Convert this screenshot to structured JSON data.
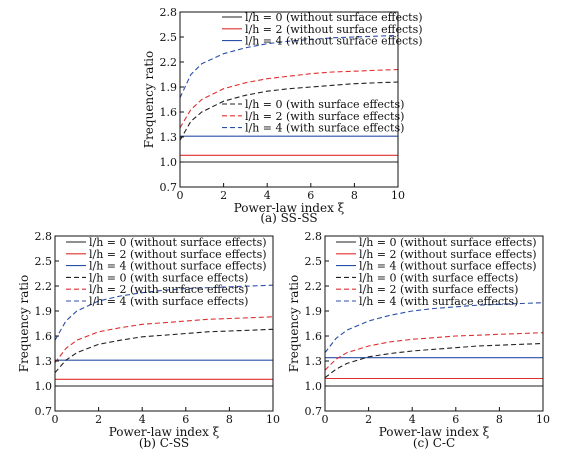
{
  "chart_data": [
    {
      "type": "line",
      "caption": "(a) SS-SS",
      "xlabel": "Power-law index ξ",
      "ylabel": "Frequency ratio",
      "xlim": [
        0,
        10
      ],
      "ylim": [
        0.7,
        2.8
      ],
      "xticks": [
        "0",
        "2",
        "4",
        "6",
        "8",
        "10"
      ],
      "yticks": [
        "0.7",
        "1.0",
        "1.3",
        "1.6",
        "1.9",
        "2.2",
        "2.5",
        "2.8"
      ],
      "legend_groups": [
        {
          "placement": "top",
          "entries": [
            0,
            1,
            2
          ]
        },
        {
          "placement": "middle-right",
          "entries": [
            3,
            4,
            5
          ]
        }
      ],
      "series": [
        {
          "name": "l/h = 0 (without surface effects)",
          "color": "#222222",
          "style": "solid",
          "x": [
            0,
            10
          ],
          "y": [
            1.0,
            1.0
          ]
        },
        {
          "name": "l/h = 2 (without surface effects)",
          "color": "#e03030",
          "style": "solid",
          "x": [
            0,
            10
          ],
          "y": [
            1.08,
            1.08
          ]
        },
        {
          "name": "l/h = 4 (without surface effects)",
          "color": "#2b4fa8",
          "style": "solid",
          "x": [
            0,
            10
          ],
          "y": [
            1.31,
            1.31
          ]
        },
        {
          "name": "l/h = 0 (with surface effects)",
          "color": "#222222",
          "style": "dashed",
          "x": [
            0,
            0.5,
            1,
            2,
            3,
            4,
            5,
            6,
            7,
            8,
            9,
            10
          ],
          "y": [
            1.26,
            1.49,
            1.6,
            1.73,
            1.8,
            1.85,
            1.88,
            1.9,
            1.92,
            1.94,
            1.95,
            1.96
          ]
        },
        {
          "name": "l/h = 2 (with surface effects)",
          "color": "#e03030",
          "style": "dashed",
          "x": [
            0,
            0.5,
            1,
            2,
            3,
            4,
            5,
            6,
            7,
            8,
            9,
            10
          ],
          "y": [
            1.41,
            1.63,
            1.75,
            1.88,
            1.95,
            2.0,
            2.03,
            2.06,
            2.08,
            2.09,
            2.1,
            2.11
          ]
        },
        {
          "name": "l/h = 4 (with surface effects)",
          "color": "#2b4fa8",
          "style": "dashed",
          "x": [
            0,
            0.5,
            1,
            2,
            3,
            4,
            5,
            6,
            7,
            8,
            9,
            10
          ],
          "y": [
            1.77,
            2.05,
            2.18,
            2.3,
            2.37,
            2.42,
            2.45,
            2.47,
            2.49,
            2.5,
            2.51,
            2.52
          ]
        }
      ]
    },
    {
      "type": "line",
      "caption": "(b) C-SS",
      "xlabel": "Power-law index ξ",
      "ylabel": "Frequency ratio",
      "xlim": [
        0,
        10
      ],
      "ylim": [
        0.7,
        2.8
      ],
      "xticks": [
        "0",
        "2",
        "4",
        "6",
        "8",
        "10"
      ],
      "yticks": [
        "0.7",
        "1.0",
        "1.3",
        "1.6",
        "1.9",
        "2.2",
        "2.5",
        "2.8"
      ],
      "legend_groups": [
        {
          "placement": "top",
          "entries": [
            0,
            1,
            2,
            3,
            4,
            5
          ]
        }
      ],
      "series": [
        {
          "name": "l/h = 0 (without surface effects)",
          "color": "#222222",
          "style": "solid",
          "x": [
            0,
            10
          ],
          "y": [
            1.0,
            1.0
          ]
        },
        {
          "name": "l/h = 2 (without surface effects)",
          "color": "#e03030",
          "style": "solid",
          "x": [
            0,
            10
          ],
          "y": [
            1.08,
            1.08
          ]
        },
        {
          "name": "l/h = 4 (without surface effects)",
          "color": "#2b4fa8",
          "style": "solid",
          "x": [
            0,
            10
          ],
          "y": [
            1.31,
            1.31
          ]
        },
        {
          "name": "l/h = 0 (with surface effects)",
          "color": "#222222",
          "style": "dashed",
          "x": [
            0,
            0.5,
            1,
            2,
            3,
            4,
            5,
            6,
            7,
            8,
            9,
            10
          ],
          "y": [
            1.16,
            1.31,
            1.4,
            1.5,
            1.55,
            1.59,
            1.61,
            1.63,
            1.65,
            1.66,
            1.67,
            1.68
          ]
        },
        {
          "name": "l/h = 2 (with surface effects)",
          "color": "#e03030",
          "style": "dashed",
          "x": [
            0,
            0.5,
            1,
            2,
            3,
            4,
            5,
            6,
            7,
            8,
            9,
            10
          ],
          "y": [
            1.28,
            1.45,
            1.55,
            1.65,
            1.7,
            1.74,
            1.76,
            1.78,
            1.8,
            1.81,
            1.82,
            1.83
          ]
        },
        {
          "name": "l/h = 4 (with surface effects)",
          "color": "#2b4fa8",
          "style": "dashed",
          "x": [
            0,
            0.5,
            1,
            2,
            3,
            4,
            5,
            6,
            7,
            8,
            9,
            10
          ],
          "y": [
            1.55,
            1.78,
            1.9,
            2.02,
            2.08,
            2.12,
            2.15,
            2.17,
            2.18,
            2.19,
            2.2,
            2.21
          ]
        }
      ]
    },
    {
      "type": "line",
      "caption": "(c) C-C",
      "xlabel": "Power-law index ξ",
      "ylabel": "Frequency ratio",
      "xlim": [
        0,
        10
      ],
      "ylim": [
        0.7,
        2.8
      ],
      "xticks": [
        "0",
        "2",
        "4",
        "6",
        "8",
        "10"
      ],
      "yticks": [
        "0.7",
        "1.0",
        "1.3",
        "1.6",
        "1.9",
        "2.2",
        "2.5",
        "2.8"
      ],
      "legend_groups": [
        {
          "placement": "top",
          "entries": [
            0,
            1,
            2,
            3,
            4,
            5
          ]
        }
      ],
      "series": [
        {
          "name": "l/h = 0 (without surface effects)",
          "color": "#222222",
          "style": "solid",
          "x": [
            0,
            10
          ],
          "y": [
            1.0,
            1.0
          ]
        },
        {
          "name": "l/h = 2 (without surface effects)",
          "color": "#e03030",
          "style": "solid",
          "x": [
            0,
            10
          ],
          "y": [
            1.09,
            1.09
          ]
        },
        {
          "name": "l/h = 4 (without surface effects)",
          "color": "#2b4fa8",
          "style": "solid",
          "x": [
            0,
            10
          ],
          "y": [
            1.34,
            1.34
          ]
        },
        {
          "name": "l/h = 0 (with surface effects)",
          "color": "#222222",
          "style": "dashed",
          "x": [
            0,
            0.5,
            1,
            2,
            3,
            4,
            5,
            6,
            7,
            8,
            9,
            10
          ],
          "y": [
            1.1,
            1.2,
            1.27,
            1.35,
            1.39,
            1.42,
            1.44,
            1.46,
            1.48,
            1.49,
            1.5,
            1.51
          ]
        },
        {
          "name": "l/h = 2 (with surface effects)",
          "color": "#e03030",
          "style": "dashed",
          "x": [
            0,
            0.5,
            1,
            2,
            3,
            4,
            5,
            6,
            7,
            8,
            9,
            10
          ],
          "y": [
            1.19,
            1.32,
            1.4,
            1.48,
            1.53,
            1.56,
            1.58,
            1.6,
            1.61,
            1.62,
            1.63,
            1.64
          ]
        },
        {
          "name": "l/h = 4 (with surface effects)",
          "color": "#2b4fa8",
          "style": "dashed",
          "x": [
            0,
            0.5,
            1,
            2,
            3,
            4,
            5,
            6,
            7,
            8,
            9,
            10
          ],
          "y": [
            1.4,
            1.57,
            1.67,
            1.78,
            1.85,
            1.9,
            1.93,
            1.95,
            1.97,
            1.98,
            1.99,
            2.0
          ]
        }
      ]
    }
  ]
}
